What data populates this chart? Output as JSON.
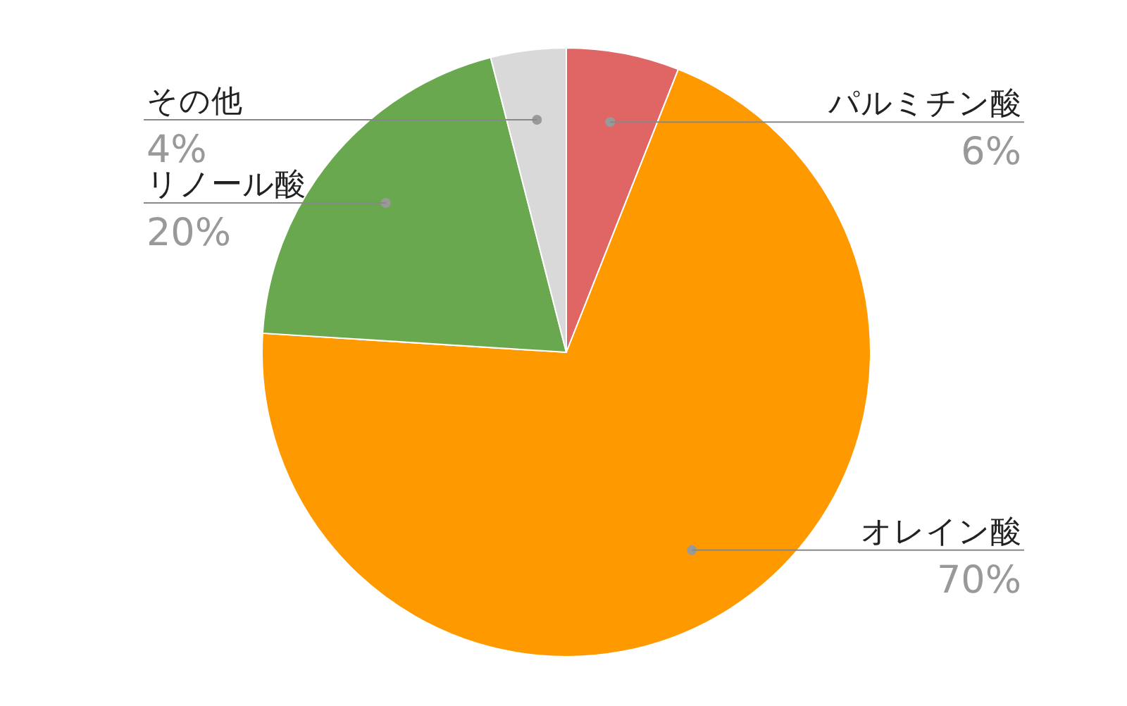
{
  "chart_data": {
    "type": "pie",
    "categories": [
      "パルミチン酸",
      "オレイン酸",
      "リノール酸",
      "その他"
    ],
    "values": [
      6,
      70,
      20,
      4
    ],
    "colors": [
      "#e06666",
      "#ff9900",
      "#6aa84f",
      "#d9d9d9"
    ],
    "value_labels": [
      "6%",
      "70%",
      "20%",
      "4%"
    ]
  }
}
